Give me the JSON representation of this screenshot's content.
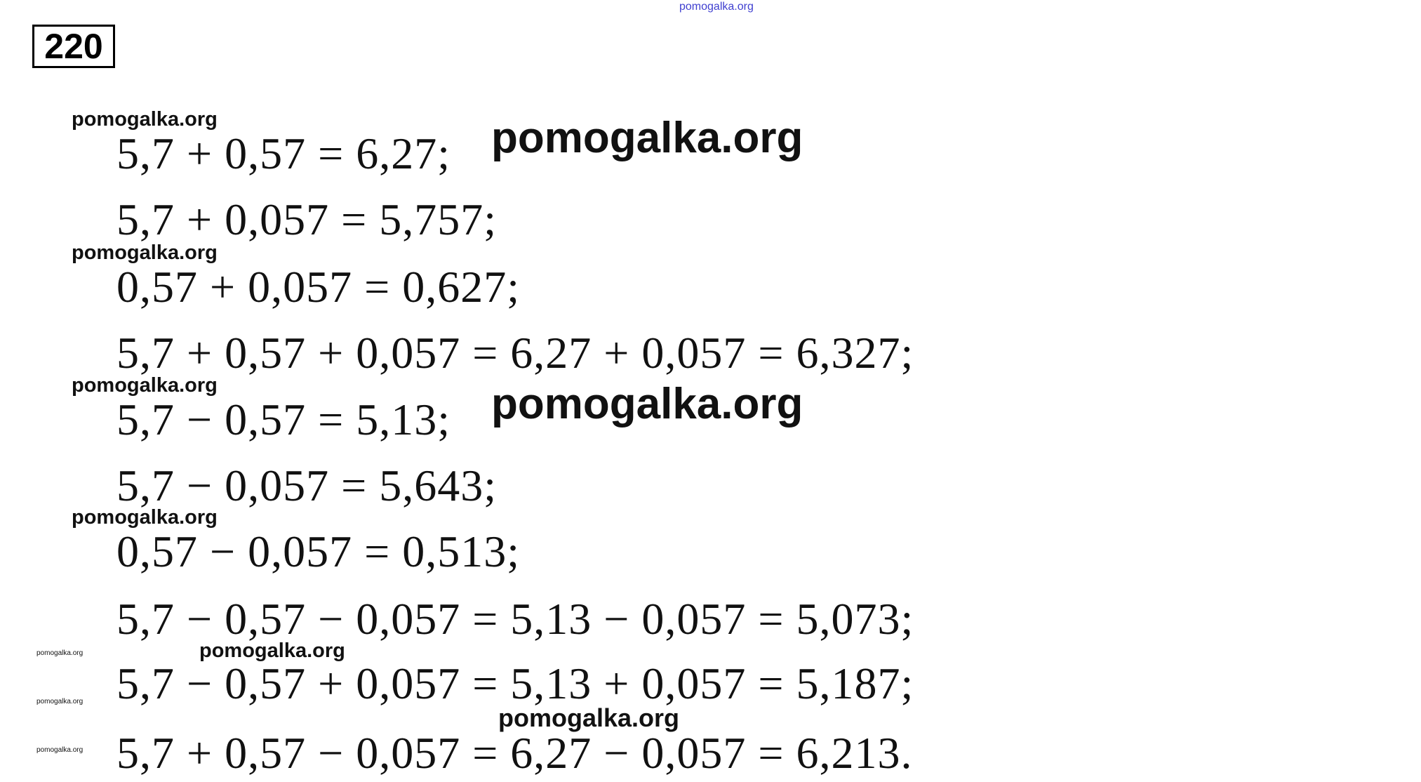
{
  "problem_number": "220",
  "equations": [
    "5,7 + 0,57 = 6,27;",
    "5,7 + 0,057 = 5,757;",
    "0,57 + 0,057 = 0,627;",
    "5,7 + 0,57 + 0,057 = 6,27 + 0,057 = 6,327;",
    "5,7 − 0,57 = 5,13;",
    "5,7 − 0,057 = 5,643;",
    "0,57 − 0,057 = 0,513;",
    "5,7 − 0,57 − 0,057 = 5,13 − 0,057 = 5,073;",
    "5,7 − 0,57 + 0,057 = 5,13 + 0,057 = 5,187;",
    "5,7 + 0,57 − 0,057 = 6,27 − 0,057 = 6,213."
  ],
  "watermark": "pomogalka.org",
  "colors": {
    "text": "#111111",
    "top_watermark": "#4040d0"
  }
}
